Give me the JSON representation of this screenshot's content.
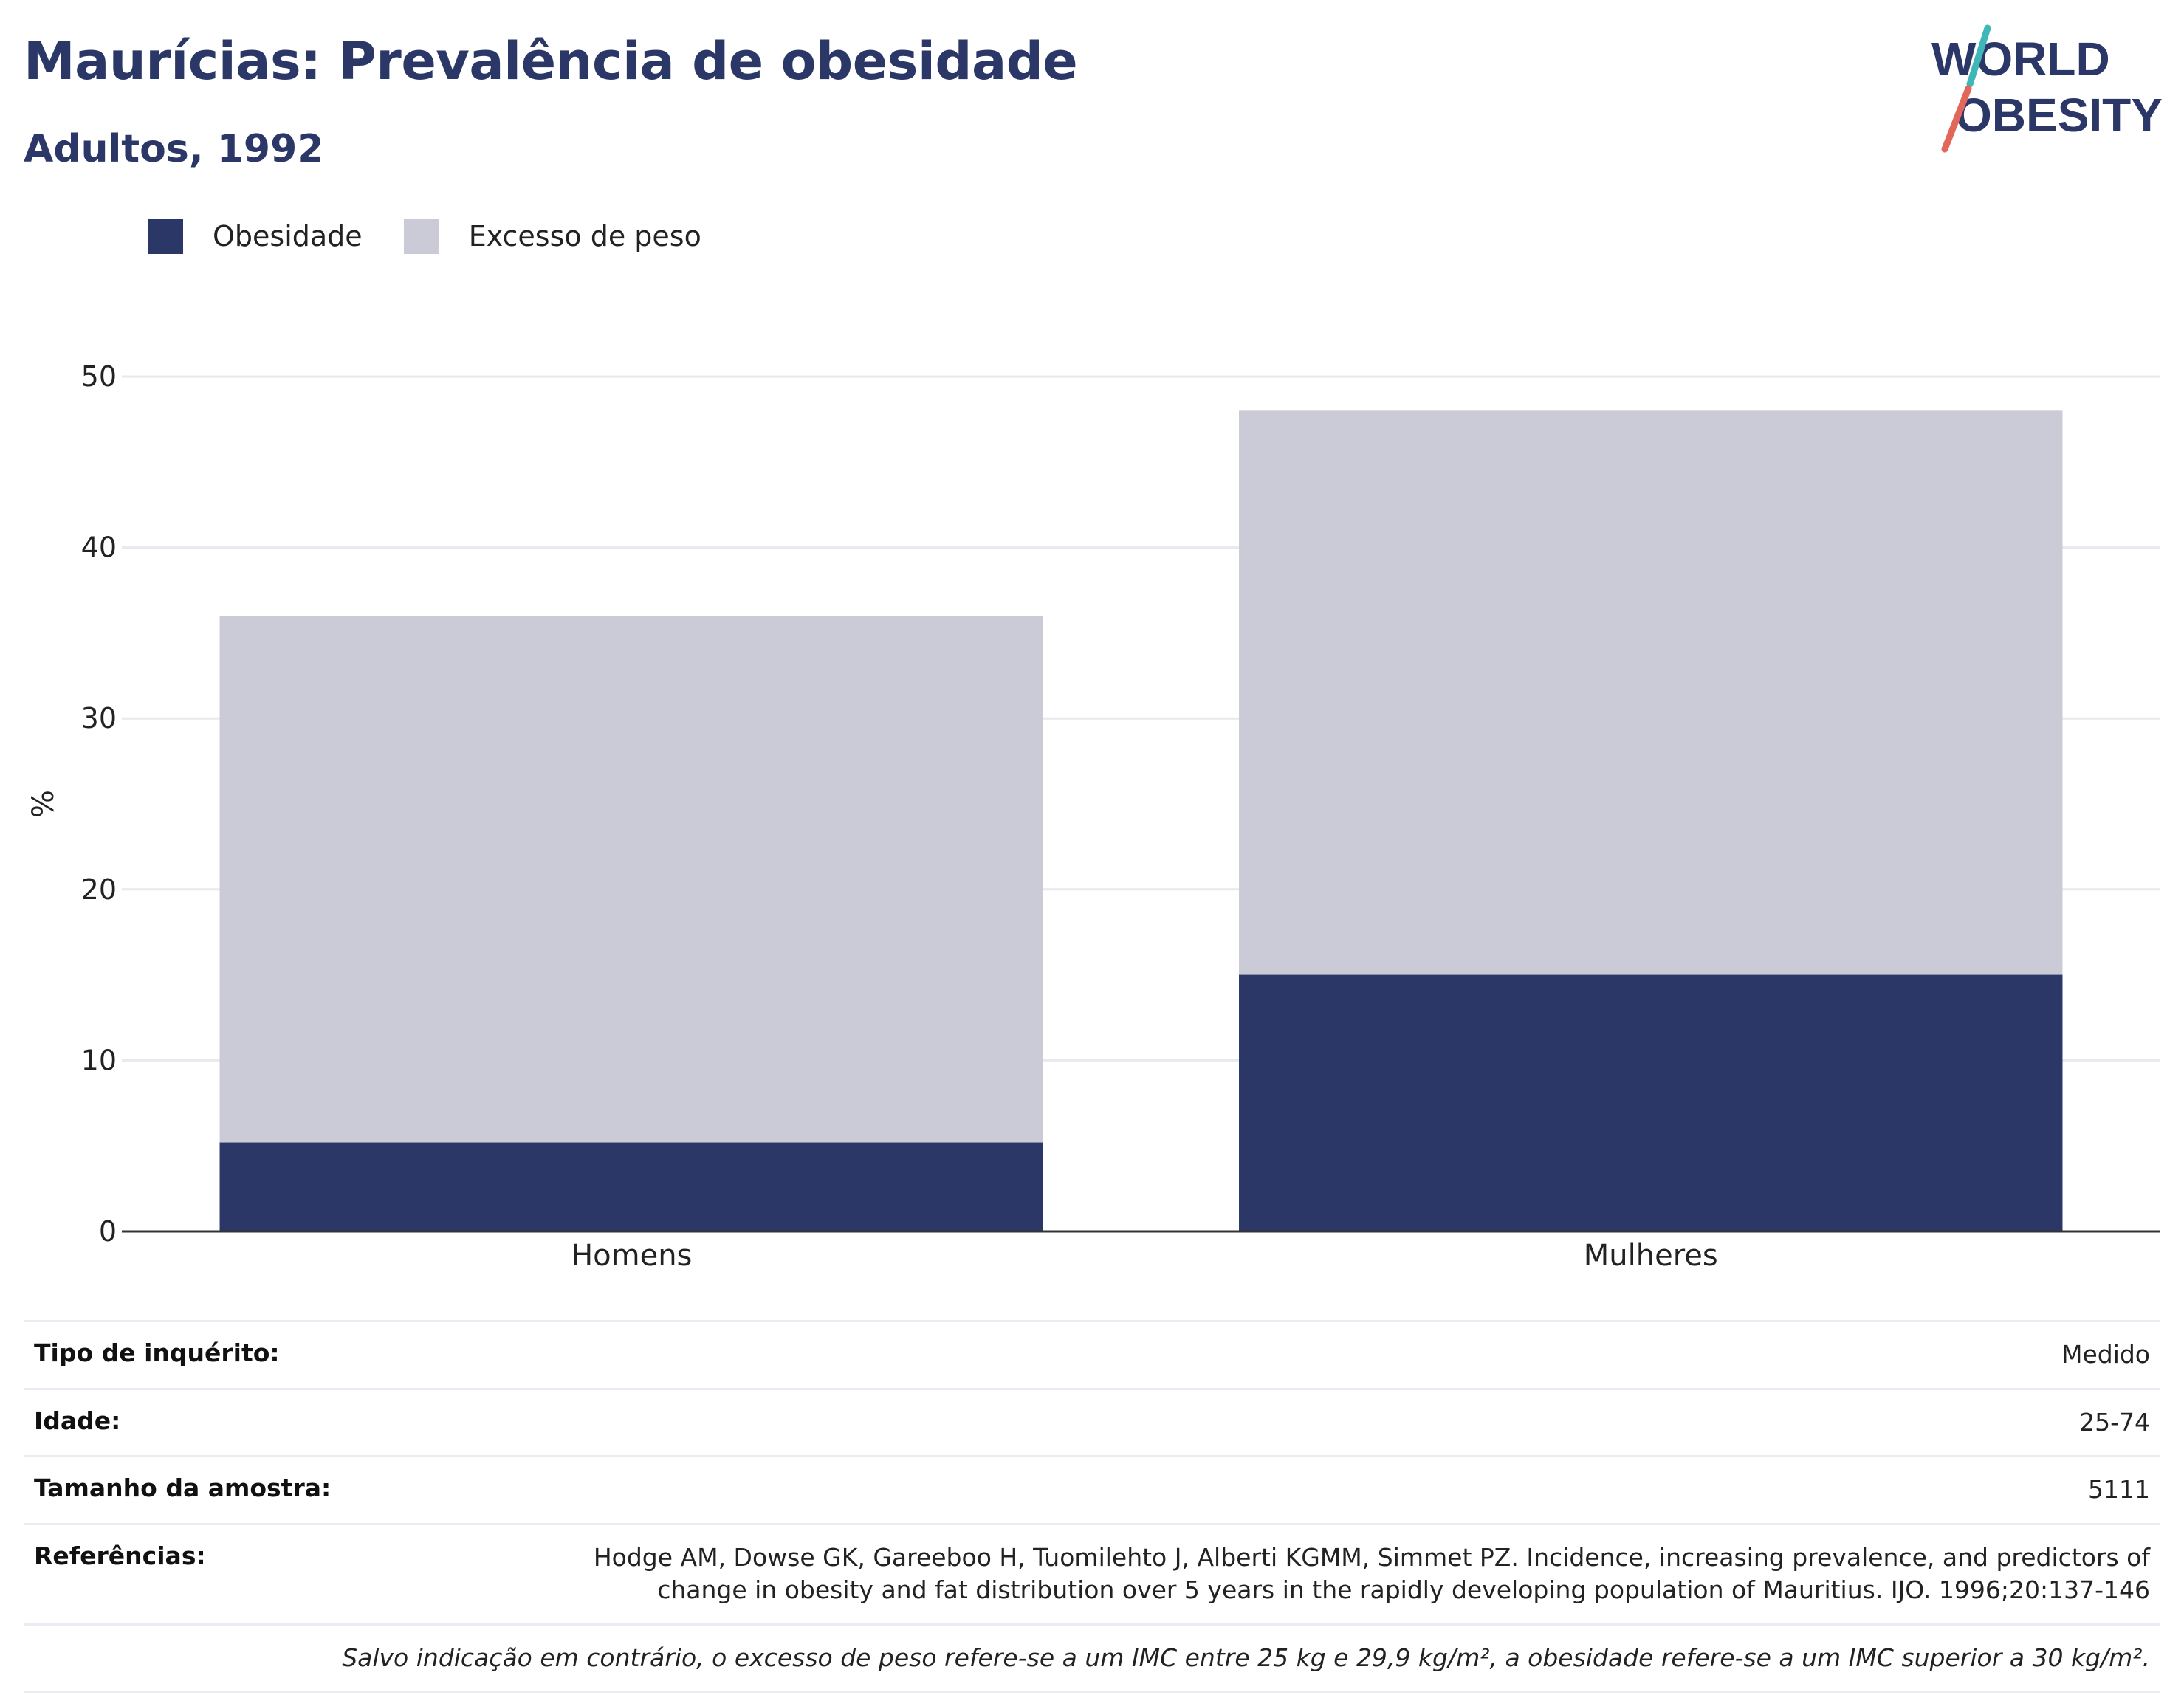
{
  "header": {
    "title": "Maurícias: Prevalência de obesidade",
    "subtitle": "Adultos, 1992"
  },
  "logo": {
    "line1": "WORLD",
    "line2": "OBESITY"
  },
  "legend": [
    {
      "label": "Obesidade",
      "color": "#2b3766"
    },
    {
      "label": "Excesso de peso",
      "color": "#cacbd7"
    }
  ],
  "chart_data": {
    "type": "bar",
    "stacked": false,
    "overlay": true,
    "categories": [
      "Homens",
      "Mulheres"
    ],
    "series": [
      {
        "name": "Excesso de peso",
        "color": "#cacbd7",
        "values": [
          36,
          48
        ]
      },
      {
        "name": "Obesidade",
        "color": "#2b3766",
        "values": [
          5.2,
          15
        ]
      }
    ],
    "ylabel": "%",
    "ylim": [
      0,
      50
    ],
    "yticks": [
      0,
      10,
      20,
      30,
      40,
      50
    ],
    "grid": true,
    "legend_position": "top-left"
  },
  "info": {
    "rows": [
      {
        "label": "Tipo de inquérito:",
        "value": "Medido"
      },
      {
        "label": "Idade:",
        "value": "25-74"
      },
      {
        "label": "Tamanho da amostra:",
        "value": "5111"
      },
      {
        "label": "Referências:",
        "value": "Hodge AM, Dowse GK, Gareeboo H, Tuomilehto J, Alberti KGMM, Simmet PZ. Incidence, increasing prevalence, and predictors of change in obesity and fat distribution over 5 years in the rapidly developing population of Mauritius. IJO. 1996;20:137-146"
      }
    ],
    "note": "Salvo indicação em contrário, o excesso de peso refere-se a um IMC entre 25 kg e 29,9 kg/m², a obesidade refere-se a um IMC superior a 30 kg/m²."
  }
}
